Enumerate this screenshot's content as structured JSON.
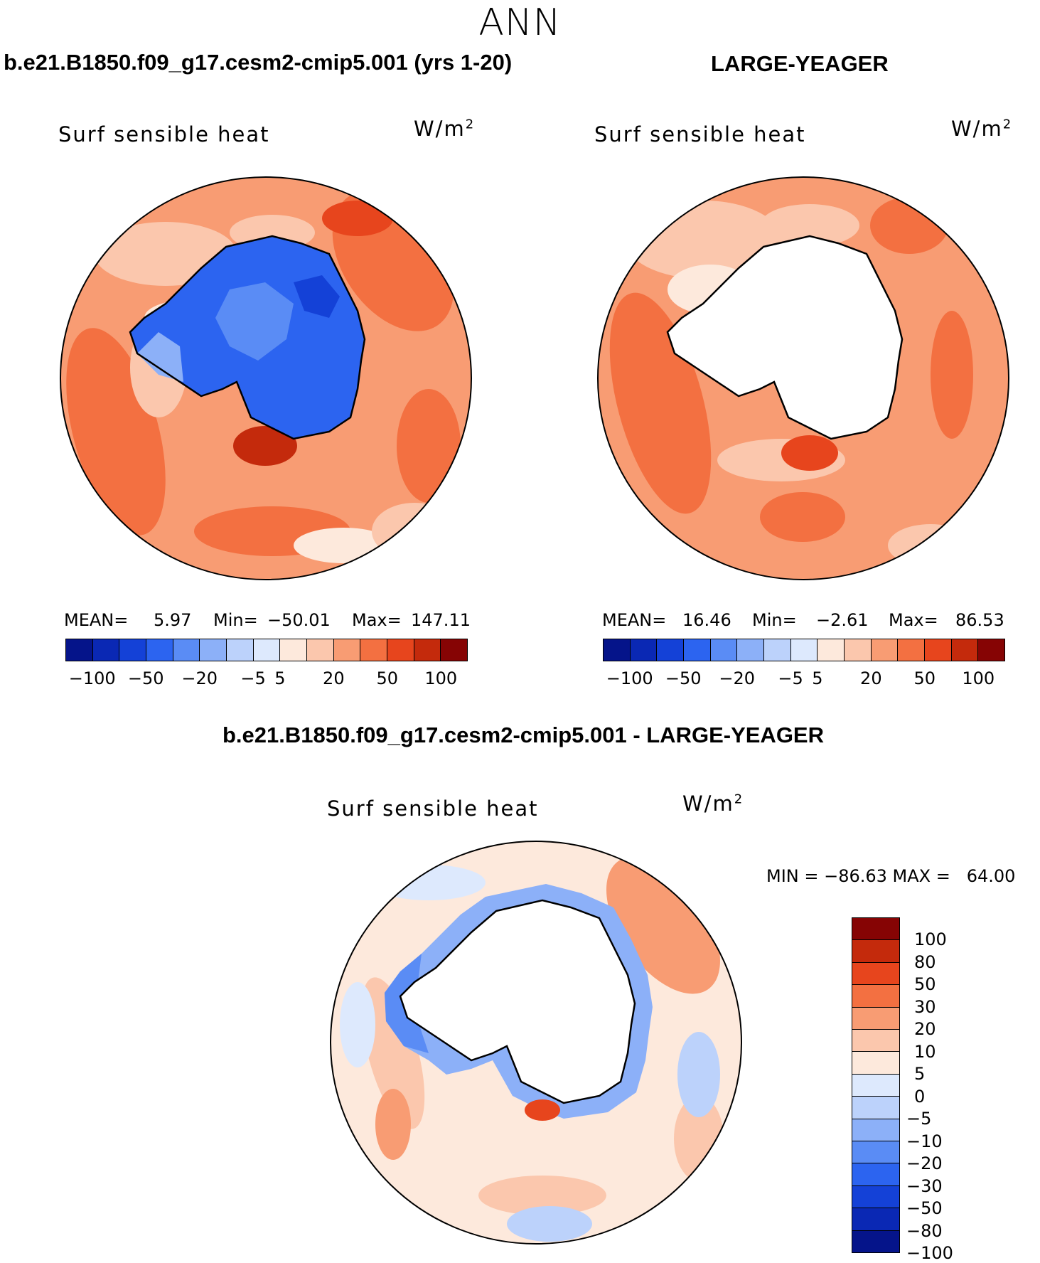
{
  "page_title": "ANN",
  "colors": {
    "diverging_palette_14": [
      "#05148a",
      "#0a28b4",
      "#1441d7",
      "#2c64f0",
      "#5a8cf5",
      "#8cb0f8",
      "#bcd2fb",
      "#dde9fd",
      "#fde9dc",
      "#fbc7ad",
      "#f89c73",
      "#f37041",
      "#e7451d",
      "#c42a0c",
      "#860404"
    ],
    "coastline": "#000000",
    "land_mask": "#ffffff"
  },
  "chart_data": [
    {
      "type": "heatmap",
      "projection": "south-polar-stereographic",
      "title": "b.e21.B1850.f09_g17.cesm2-cmip5.001 (yrs 1-20)",
      "variable": "Surf sensible heat",
      "units": "W/m²",
      "mean_label": "MEAN=",
      "mean": "5.97",
      "min_label": "Min=",
      "min": "−50.01",
      "max_label": "Max=",
      "max": "147.11",
      "colorbar_ticks": [
        "−100",
        "−50",
        "−20",
        "−5",
        "5",
        "20",
        "50",
        "100"
      ],
      "colorbar_levels": [
        -100,
        -80,
        -50,
        -30,
        -20,
        -10,
        -5,
        0,
        5,
        10,
        20,
        30,
        50,
        80,
        100
      ],
      "ocean_field": "mostly 5 to 50 W/m², maxima 50-100 near the Weddell/Ross coasts",
      "continent_field": "negative, -20 to -50 W/m²"
    },
    {
      "type": "heatmap",
      "projection": "south-polar-stereographic",
      "title": "LARGE-YEAGER",
      "variable": "Surf sensible heat",
      "units": "W/m²",
      "mean_label": "MEAN=",
      "mean": "16.46",
      "min_label": "Min=",
      "min": "−2.61",
      "max_label": "Max=",
      "max": "86.53",
      "colorbar_ticks": [
        "−100",
        "−50",
        "−20",
        "−5",
        "5",
        "20",
        "50",
        "100"
      ],
      "colorbar_levels": [
        -100,
        -80,
        -50,
        -30,
        -20,
        -10,
        -5,
        0,
        5,
        10,
        20,
        30,
        50,
        80,
        100
      ],
      "ocean_field": "mostly 10 to 50 W/m²",
      "continent_field": "missing (no data over land)"
    },
    {
      "type": "heatmap",
      "projection": "south-polar-stereographic",
      "title": "b.e21.B1850.f09_g17.cesm2-cmip5.001 - LARGE-YEAGER",
      "variable": "Surf sensible heat",
      "units": "W/m²",
      "minmax_text": "MIN = −86.63 MAX =   64.00",
      "colorbar_ticks": [
        "100",
        "80",
        "50",
        "30",
        "20",
        "10",
        "5",
        "0",
        "−5",
        "−10",
        "−20",
        "−30",
        "−50",
        "−80",
        "−100"
      ],
      "colorbar_levels": [
        -100,
        -80,
        -50,
        -30,
        -20,
        -10,
        -5,
        0,
        5,
        10,
        20,
        30,
        50,
        80,
        100
      ],
      "ocean_field": "mostly -10 to 20 W/m², strong negative ring along the Antarctic coast",
      "continent_field": "missing (no data over land)"
    }
  ]
}
